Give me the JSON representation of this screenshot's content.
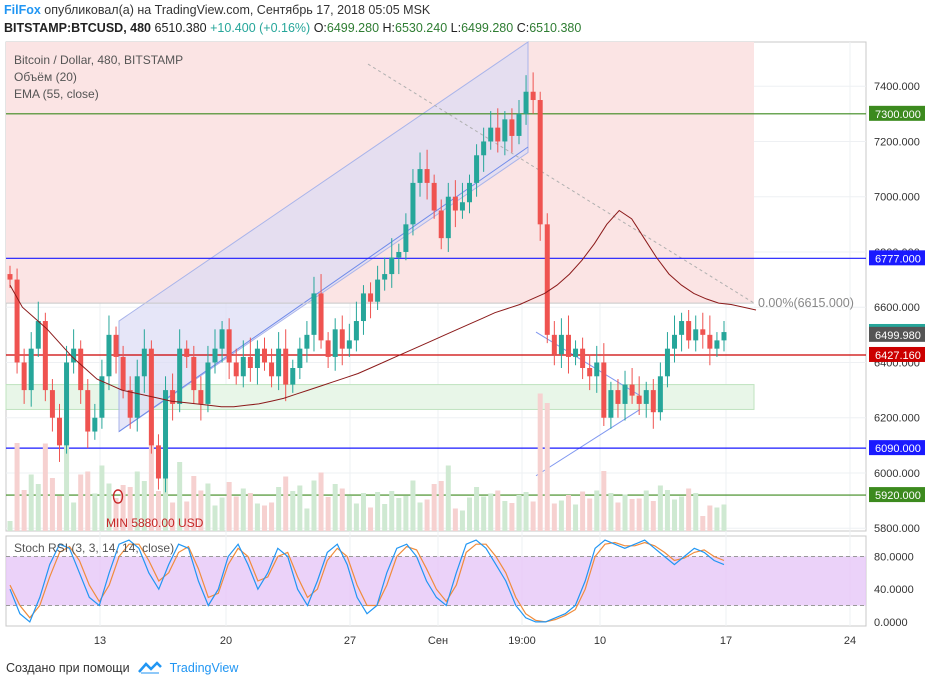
{
  "header": {
    "brand": "FilFox",
    "published_text": "опубликовал(а) на TradingView.com, Сентябрь 17, 2018 05:05 MSK",
    "symbol": "BITSTAMP:BTCUSD, 480",
    "last": "6510.380",
    "change": "+10.400 (+0.16%)",
    "o_label": "O:",
    "o": "6499.280",
    "h_label": "H:",
    "h": "6530.240",
    "l_label": "L:",
    "l": "6499.280",
    "c_label": "C:",
    "c": "6510.380"
  },
  "legend": {
    "series": "Bitcoin / Dollar, 480, BITSTAMP",
    "volume": "Объём (20)",
    "ema": "EMA (55, close)",
    "stoch": "Stoch RSI (3, 3, 14, 14, close)"
  },
  "annotations": {
    "fib": "0.00%(6615.000)",
    "min": "MIN 5880.00 USD"
  },
  "footer": {
    "created": "Создано при помощи",
    "brand": "TradingView"
  },
  "colors": {
    "up": "#26a69a",
    "down": "#ef5350",
    "ema": "#8b1a1a",
    "blue_line": "#1a1aff",
    "green_line": "#3c8a1e",
    "red_line": "#cc0000",
    "zone": "#fbe4e4",
    "channel": "#dcdcf5",
    "stoch_band": "#e6c7f7"
  },
  "chart_data": {
    "type": "candlestick",
    "ylim": [
      5790,
      7560
    ],
    "y_ticks": [
      "7400.000",
      "7200.000",
      "7000.000",
      "6800.000",
      "6600.000",
      "6400.000",
      "6200.000",
      "6000.000",
      "5800.000"
    ],
    "x_ticks": [
      "13",
      "20",
      "27",
      "Сен",
      "19:00",
      "10",
      "17",
      "24"
    ],
    "price_labels": [
      {
        "text": "7300.000",
        "value": 7300,
        "kind": "green"
      },
      {
        "text": "6777.000",
        "value": 6777,
        "kind": "blue"
      },
      {
        "text": "6510.380",
        "value": 6510.38,
        "kind": "teal"
      },
      {
        "text": "6499.980",
        "value": 6499.98,
        "kind": "gray"
      },
      {
        "text": "6427.160",
        "value": 6427.16,
        "kind": "red"
      },
      {
        "text": "6090.000",
        "value": 6090,
        "kind": "blue"
      },
      {
        "text": "5920.000",
        "value": 5920,
        "kind": "green"
      }
    ],
    "horizontal_lines": [
      {
        "value": 7300,
        "kind": "green"
      },
      {
        "value": 6777,
        "kind": "blue"
      },
      {
        "value": 6427.16,
        "kind": "red"
      },
      {
        "value": 6090,
        "kind": "blue"
      },
      {
        "value": 5920,
        "kind": "green"
      }
    ],
    "closes": [
      6700,
      6400,
      6300,
      6450,
      6550,
      6300,
      6200,
      6100,
      6400,
      6450,
      6300,
      6150,
      6200,
      6350,
      6500,
      6420,
      6300,
      6200,
      6350,
      6450,
      6100,
      5980,
      6300,
      6250,
      6450,
      6420,
      6300,
      6250,
      6400,
      6450,
      6520,
      6400,
      6350,
      6420,
      6380,
      6450,
      6400,
      6350,
      6450,
      6320,
      6380,
      6450,
      6500,
      6650,
      6480,
      6420,
      6520,
      6450,
      6480,
      6550,
      6650,
      6620,
      6700,
      6720,
      6780,
      6800,
      6900,
      7050,
      7100,
      7050,
      6950,
      6850,
      7000,
      6950,
      6980,
      7050,
      7150,
      7200,
      7250,
      7200,
      7280,
      7220,
      7300,
      7380,
      7350,
      6900,
      6500,
      6430,
      6500,
      6420,
      6450,
      6380,
      6350,
      6400,
      6200,
      6300,
      6250,
      6320,
      6280,
      6250,
      6300,
      6220,
      6350,
      6450,
      6500,
      6550,
      6480,
      6520,
      6500,
      6450,
      6480,
      6510
    ],
    "ema": [
      6680,
      6600,
      6560,
      6520,
      6470,
      6420,
      6380,
      6340,
      6320,
      6300,
      6290,
      6280,
      6270,
      6260,
      6255,
      6250,
      6245,
      6240,
      6240,
      6245,
      6250,
      6260,
      6270,
      6285,
      6300,
      6315,
      6330,
      6345,
      6360,
      6380,
      6400,
      6420,
      6440,
      6460,
      6480,
      6500,
      6520,
      6540,
      6560,
      6580,
      6595,
      6610,
      6630,
      6650,
      6680,
      6720,
      6770,
      6830,
      6900,
      6950,
      6920,
      6850,
      6780,
      6720,
      6680,
      6650,
      6630,
      6615,
      6610,
      6600,
      6590
    ],
    "stoch_ylim": [
      -5,
      105
    ],
    "stoch_ticks": [
      "80.0000",
      "40.0000",
      "0.0000"
    ],
    "stoch_k": [
      40,
      10,
      0,
      30,
      70,
      95,
      90,
      60,
      30,
      20,
      60,
      95,
      100,
      90,
      60,
      40,
      70,
      95,
      90,
      50,
      20,
      40,
      80,
      95,
      70,
      40,
      60,
      90,
      80,
      40,
      20,
      50,
      85,
      95,
      70,
      30,
      10,
      20,
      60,
      90,
      95,
      80,
      50,
      30,
      20,
      60,
      95,
      100,
      90,
      70,
      50,
      20,
      5,
      0,
      0,
      5,
      10,
      20,
      50,
      90,
      100,
      95,
      90,
      95,
      100,
      90,
      80,
      70,
      80,
      90,
      85,
      75,
      70
    ],
    "stoch_d": [
      45,
      20,
      5,
      20,
      55,
      85,
      92,
      75,
      45,
      25,
      45,
      80,
      95,
      95,
      75,
      50,
      60,
      85,
      92,
      65,
      30,
      35,
      70,
      90,
      80,
      50,
      55,
      80,
      85,
      55,
      30,
      40,
      75,
      90,
      80,
      45,
      20,
      20,
      45,
      80,
      92,
      88,
      65,
      40,
      25,
      45,
      85,
      95,
      95,
      80,
      60,
      30,
      10,
      2,
      0,
      3,
      8,
      15,
      40,
      80,
      95,
      97,
      93,
      93,
      97,
      93,
      85,
      75,
      78,
      85,
      88,
      80,
      75
    ]
  }
}
